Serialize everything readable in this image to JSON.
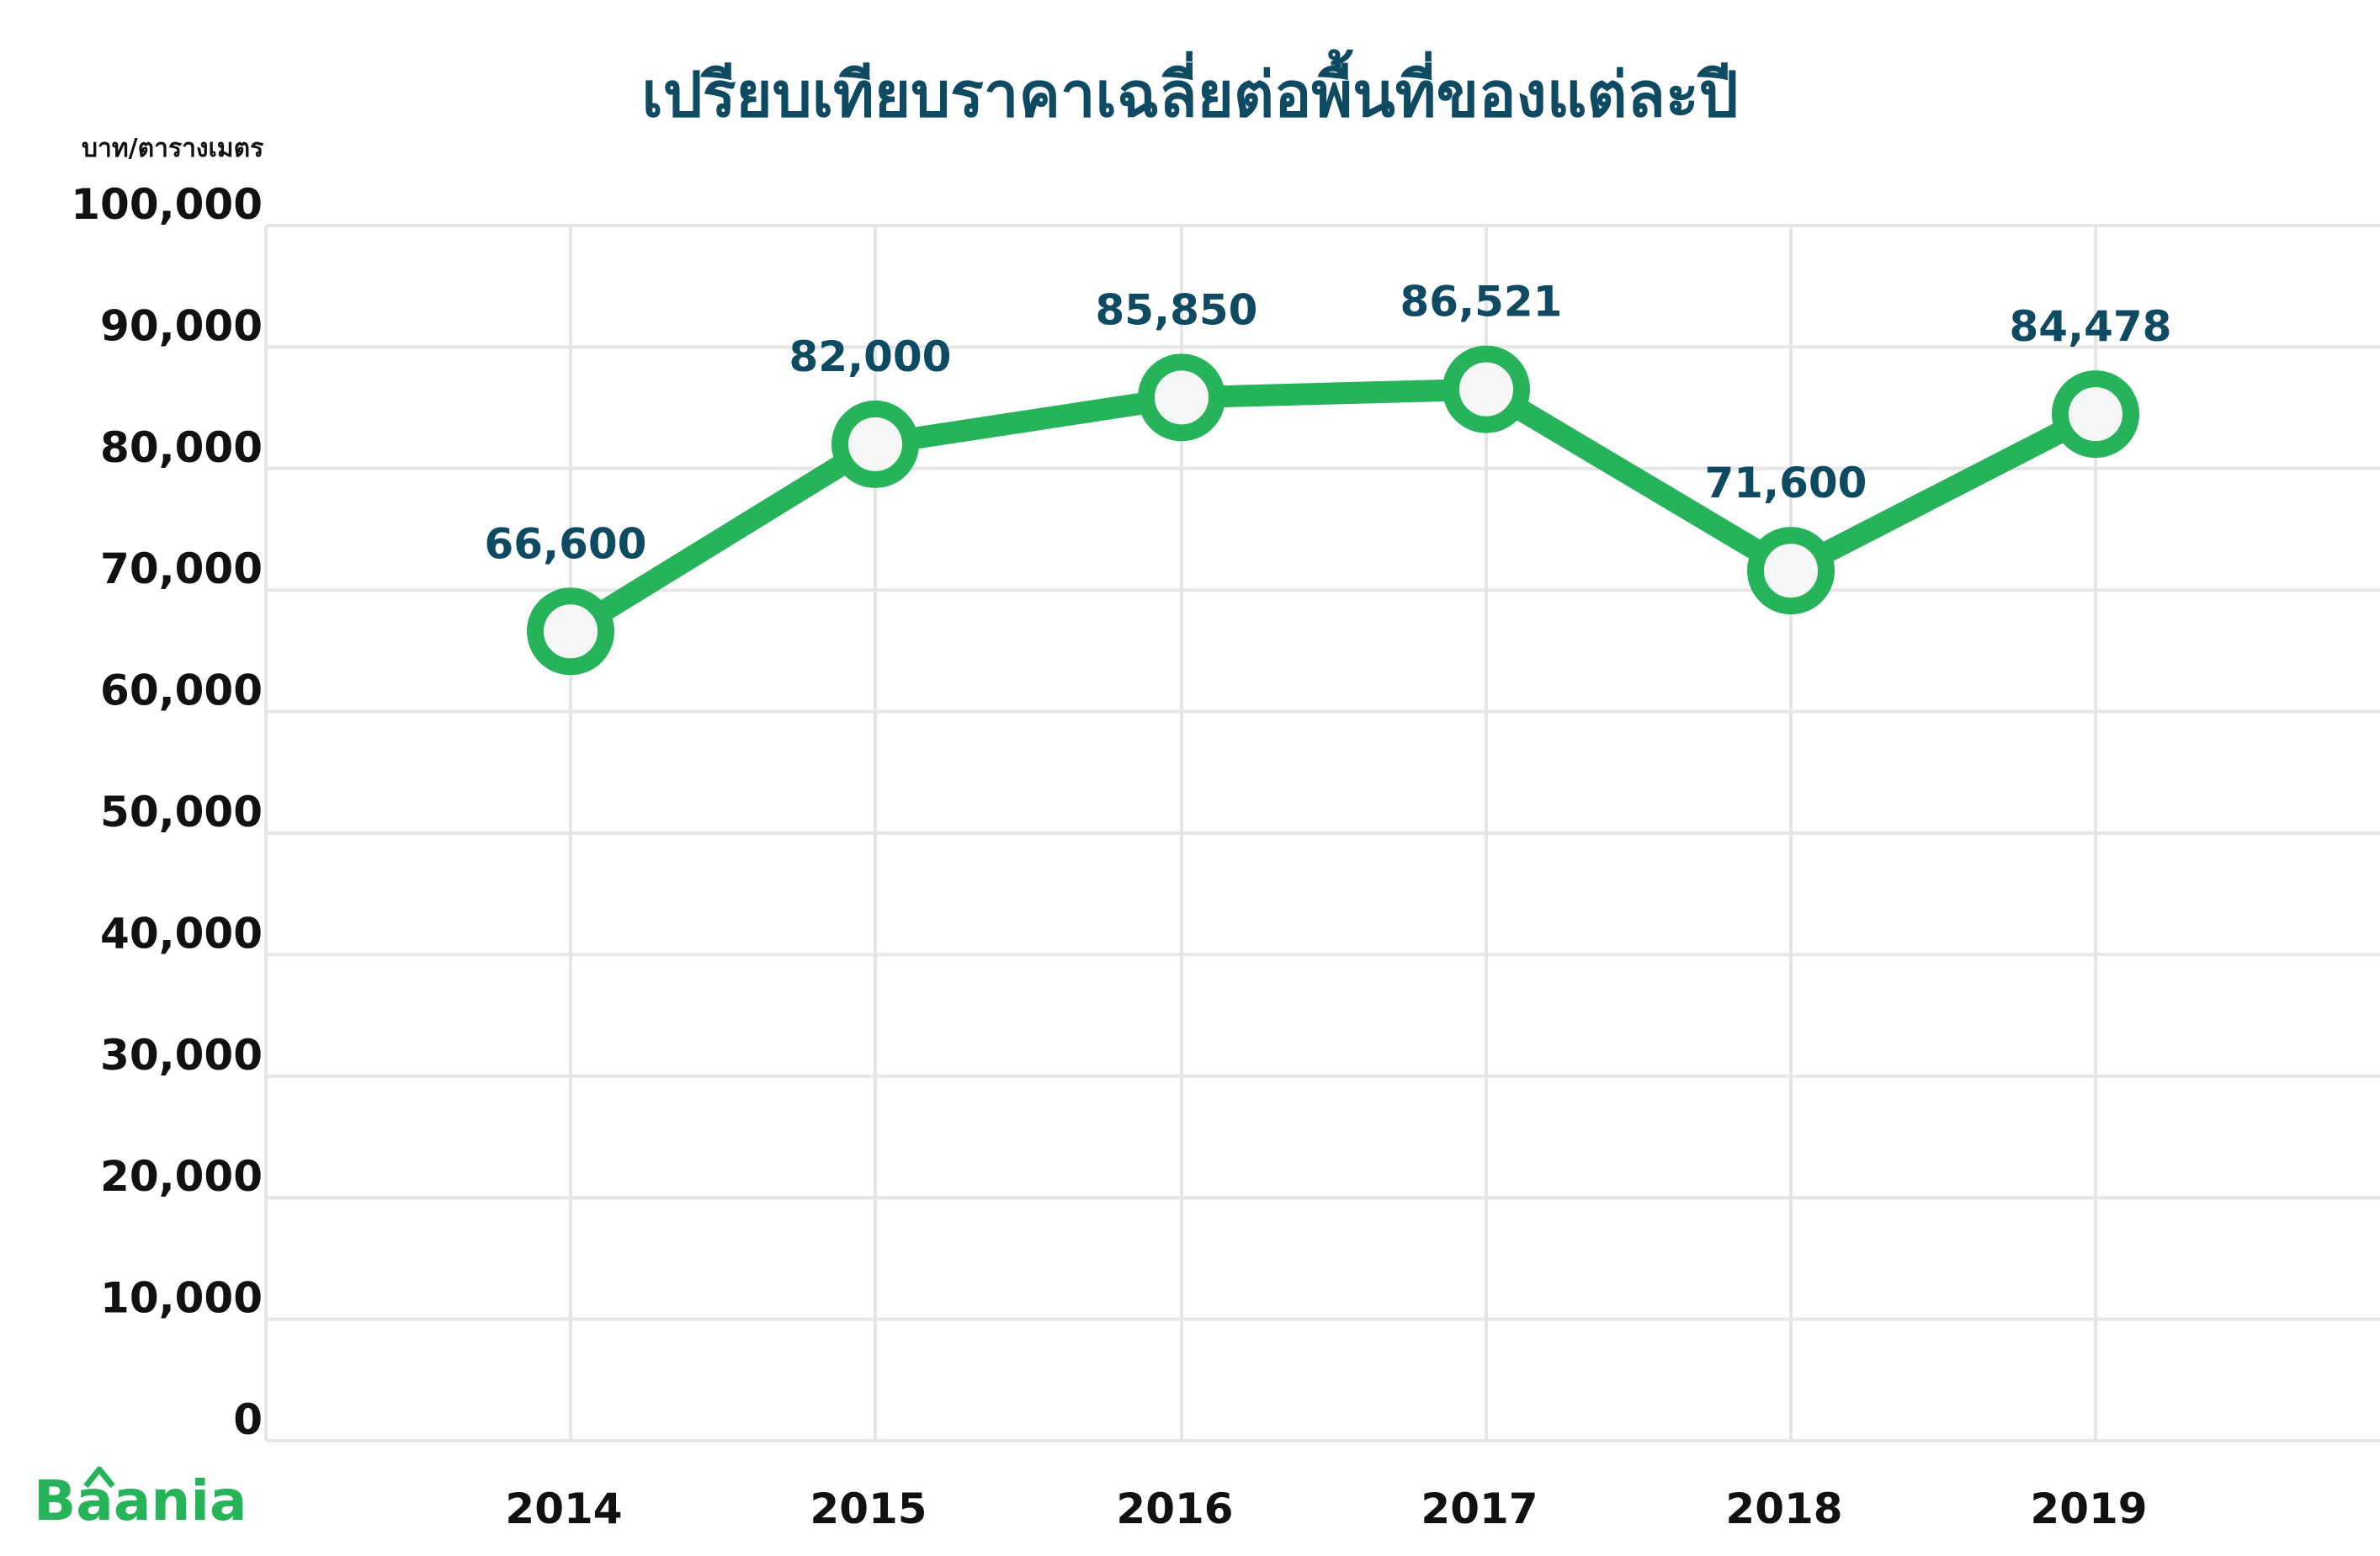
{
  "chart_data": {
    "type": "line",
    "title": "เปรียบเทียบราคาเฉลี่ยต่อพื้นที่ของแต่ละปี",
    "ylabel": "บาท/ตารางเมตร",
    "xlabel": "",
    "categories": [
      "2014",
      "2015",
      "2016",
      "2017",
      "2018",
      "2019"
    ],
    "series": [
      {
        "values": [
          66600,
          82000,
          85850,
          86521,
          71600,
          84478
        ]
      }
    ],
    "data_labels": [
      "66,600",
      "82,000",
      "85,850",
      "86,521",
      "71,600",
      "84,478"
    ],
    "ylim": [
      0,
      100000
    ],
    "yticks": [
      0,
      10000,
      20000,
      30000,
      40000,
      50000,
      60000,
      70000,
      80000,
      90000,
      100000
    ],
    "ytick_labels": [
      "0",
      "10,000",
      "20,000",
      "30,000",
      "40,000",
      "50,000",
      "60,000",
      "70,000",
      "80,000",
      "90,000",
      "100,000"
    ],
    "grid": true,
    "colors": {
      "line": "#27b35a",
      "marker_fill": "#f5f7f6",
      "label": "#0f4a63",
      "grid": "#e6e6e6",
      "title": "#0f4a63"
    }
  },
  "brand": {
    "logo_text": "Baania",
    "logo_color": "#27b35a"
  }
}
